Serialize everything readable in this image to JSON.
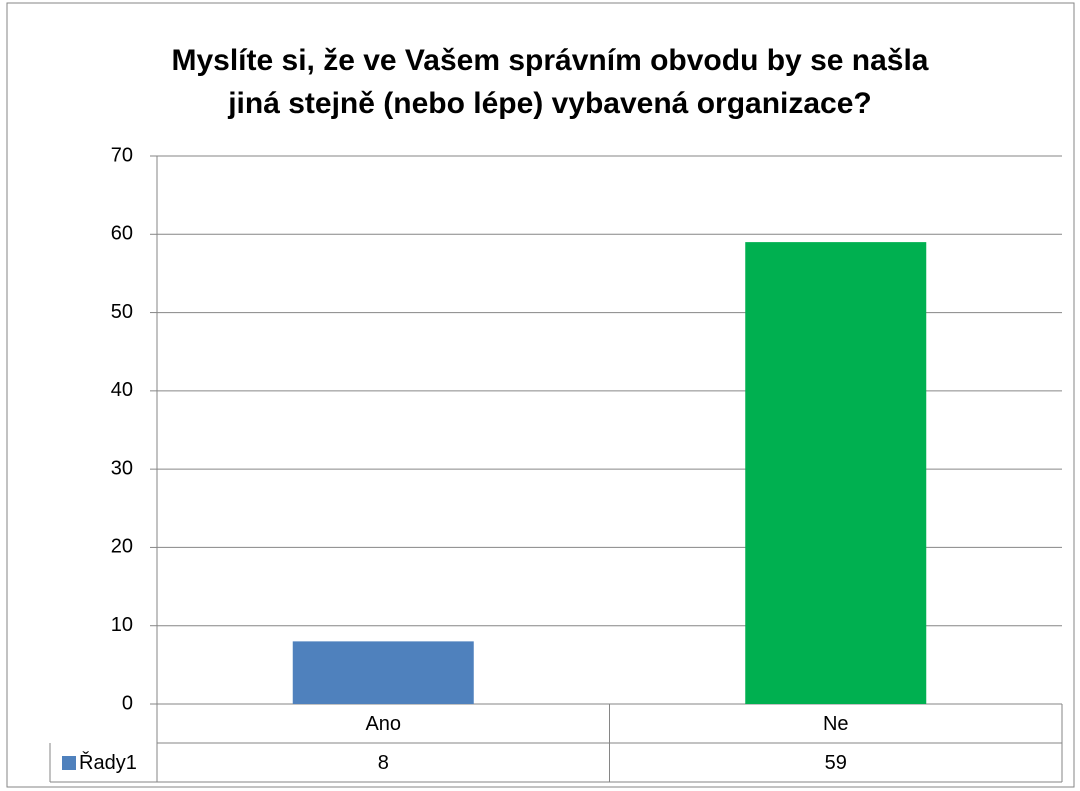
{
  "chart_data": {
    "type": "bar",
    "title": [
      "Myslíte si, že ve Vašem správním obvodu by se našla",
      "jiná stejně (nebo lépe) vybavená organizace?"
    ],
    "categories": [
      "Ano",
      "Ne"
    ],
    "series": [
      {
        "name": "Řady1",
        "color": "#4f81bd",
        "point_colors": [
          "#4f81bd",
          "#00b050"
        ],
        "values": [
          8,
          59
        ]
      }
    ],
    "ylim": [
      0,
      70
    ],
    "yticks": [
      0,
      10,
      20,
      30,
      40,
      50,
      60,
      70
    ],
    "grid": true,
    "data_table": true
  }
}
